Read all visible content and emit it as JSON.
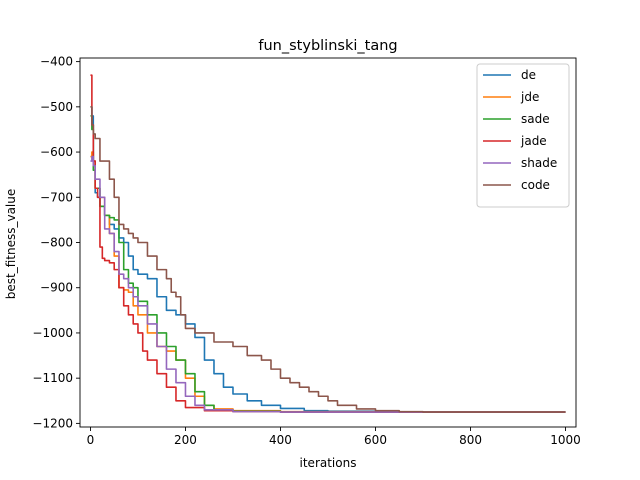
{
  "chart_data": {
    "type": "line",
    "title": "fun_styblinski_tang",
    "xlabel": "iterations",
    "ylabel": "best_fitness_value",
    "xlim": [
      -22,
      1022
    ],
    "ylim": [
      -1208,
      -392
    ],
    "xticks": [
      0,
      200,
      400,
      600,
      800,
      1000
    ],
    "yticks": [
      -1200,
      -1100,
      -1000,
      -900,
      -800,
      -700,
      -600,
      -500,
      -400
    ],
    "grid": false,
    "legend_position": "top-right",
    "series": [
      {
        "name": "de",
        "color": "#1f77b4",
        "points": [
          [
            0,
            -500
          ],
          [
            3,
            -520
          ],
          [
            6,
            -620
          ],
          [
            10,
            -690
          ],
          [
            15,
            -700
          ],
          [
            20,
            -720
          ],
          [
            30,
            -740
          ],
          [
            40,
            -760
          ],
          [
            50,
            -770
          ],
          [
            60,
            -790
          ],
          [
            70,
            -800
          ],
          [
            80,
            -830
          ],
          [
            90,
            -860
          ],
          [
            100,
            -870
          ],
          [
            120,
            -880
          ],
          [
            140,
            -920
          ],
          [
            160,
            -950
          ],
          [
            180,
            -960
          ],
          [
            200,
            -980
          ],
          [
            220,
            -1010
          ],
          [
            240,
            -1060
          ],
          [
            260,
            -1090
          ],
          [
            280,
            -1120
          ],
          [
            300,
            -1135
          ],
          [
            330,
            -1150
          ],
          [
            360,
            -1160
          ],
          [
            400,
            -1167
          ],
          [
            450,
            -1172
          ],
          [
            500,
            -1173
          ],
          [
            600,
            -1175
          ],
          [
            700,
            -1175
          ],
          [
            800,
            -1175
          ],
          [
            1000,
            -1175
          ]
        ]
      },
      {
        "name": "jde",
        "color": "#ff7f0e",
        "points": [
          [
            0,
            -610
          ],
          [
            3,
            -600
          ],
          [
            6,
            -620
          ],
          [
            10,
            -680
          ],
          [
            20,
            -700
          ],
          [
            30,
            -740
          ],
          [
            40,
            -780
          ],
          [
            50,
            -830
          ],
          [
            60,
            -900
          ],
          [
            70,
            -905
          ],
          [
            80,
            -910
          ],
          [
            90,
            -940
          ],
          [
            100,
            -960
          ],
          [
            120,
            -1000
          ],
          [
            140,
            -1030
          ],
          [
            160,
            -1040
          ],
          [
            180,
            -1060
          ],
          [
            200,
            -1100
          ],
          [
            220,
            -1140
          ],
          [
            240,
            -1160
          ],
          [
            260,
            -1168
          ],
          [
            300,
            -1172
          ],
          [
            400,
            -1174
          ],
          [
            600,
            -1175
          ],
          [
            800,
            -1175
          ],
          [
            1000,
            -1175
          ]
        ]
      },
      {
        "name": "sade",
        "color": "#2ca02c",
        "points": [
          [
            0,
            -520
          ],
          [
            3,
            -550
          ],
          [
            6,
            -640
          ],
          [
            10,
            -680
          ],
          [
            20,
            -720
          ],
          [
            30,
            -740
          ],
          [
            40,
            -745
          ],
          [
            50,
            -750
          ],
          [
            60,
            -800
          ],
          [
            70,
            -860
          ],
          [
            80,
            -890
          ],
          [
            90,
            -900
          ],
          [
            100,
            -930
          ],
          [
            120,
            -960
          ],
          [
            140,
            -1000
          ],
          [
            160,
            -1030
          ],
          [
            180,
            -1060
          ],
          [
            200,
            -1090
          ],
          [
            220,
            -1130
          ],
          [
            240,
            -1160
          ],
          [
            260,
            -1170
          ],
          [
            300,
            -1173
          ],
          [
            400,
            -1175
          ],
          [
            600,
            -1175
          ],
          [
            800,
            -1175
          ],
          [
            1000,
            -1175
          ]
        ]
      },
      {
        "name": "jade",
        "color": "#d62728",
        "points": [
          [
            0,
            -430
          ],
          [
            3,
            -540
          ],
          [
            6,
            -620
          ],
          [
            10,
            -680
          ],
          [
            15,
            -700
          ],
          [
            20,
            -810
          ],
          [
            25,
            -835
          ],
          [
            30,
            -840
          ],
          [
            40,
            -845
          ],
          [
            50,
            -860
          ],
          [
            60,
            -900
          ],
          [
            70,
            -940
          ],
          [
            80,
            -960
          ],
          [
            90,
            -980
          ],
          [
            100,
            -1000
          ],
          [
            110,
            -1040
          ],
          [
            120,
            -1060
          ],
          [
            140,
            -1090
          ],
          [
            160,
            -1120
          ],
          [
            180,
            -1150
          ],
          [
            200,
            -1165
          ],
          [
            240,
            -1172
          ],
          [
            300,
            -1174
          ],
          [
            400,
            -1175
          ],
          [
            600,
            -1175
          ],
          [
            800,
            -1175
          ],
          [
            1000,
            -1175
          ]
        ]
      },
      {
        "name": "shade",
        "color": "#9467bd",
        "points": [
          [
            0,
            -620
          ],
          [
            3,
            -610
          ],
          [
            6,
            -630
          ],
          [
            10,
            -660
          ],
          [
            20,
            -700
          ],
          [
            30,
            -770
          ],
          [
            40,
            -780
          ],
          [
            50,
            -820
          ],
          [
            60,
            -870
          ],
          [
            70,
            -880
          ],
          [
            80,
            -900
          ],
          [
            90,
            -920
          ],
          [
            100,
            -940
          ],
          [
            120,
            -980
          ],
          [
            140,
            -1030
          ],
          [
            160,
            -1080
          ],
          [
            180,
            -1110
          ],
          [
            200,
            -1140
          ],
          [
            220,
            -1160
          ],
          [
            240,
            -1170
          ],
          [
            300,
            -1174
          ],
          [
            400,
            -1175
          ],
          [
            600,
            -1175
          ],
          [
            800,
            -1175
          ],
          [
            1000,
            -1175
          ]
        ]
      },
      {
        "name": "code",
        "color": "#8c564b",
        "points": [
          [
            0,
            -500
          ],
          [
            3,
            -540
          ],
          [
            6,
            -560
          ],
          [
            10,
            -570
          ],
          [
            20,
            -620
          ],
          [
            30,
            -620
          ],
          [
            40,
            -660
          ],
          [
            50,
            -700
          ],
          [
            60,
            -760
          ],
          [
            70,
            -770
          ],
          [
            80,
            -780
          ],
          [
            90,
            -790
          ],
          [
            100,
            -800
          ],
          [
            120,
            -830
          ],
          [
            140,
            -860
          ],
          [
            160,
            -880
          ],
          [
            170,
            -910
          ],
          [
            180,
            -920
          ],
          [
            190,
            -960
          ],
          [
            200,
            -990
          ],
          [
            220,
            -1000
          ],
          [
            260,
            -1020
          ],
          [
            300,
            -1030
          ],
          [
            330,
            -1050
          ],
          [
            360,
            -1060
          ],
          [
            380,
            -1080
          ],
          [
            400,
            -1100
          ],
          [
            420,
            -1110
          ],
          [
            440,
            -1120
          ],
          [
            460,
            -1130
          ],
          [
            480,
            -1140
          ],
          [
            500,
            -1150
          ],
          [
            520,
            -1160
          ],
          [
            560,
            -1168
          ],
          [
            600,
            -1172
          ],
          [
            650,
            -1174
          ],
          [
            700,
            -1175
          ],
          [
            800,
            -1175
          ],
          [
            1000,
            -1175
          ]
        ]
      }
    ]
  }
}
